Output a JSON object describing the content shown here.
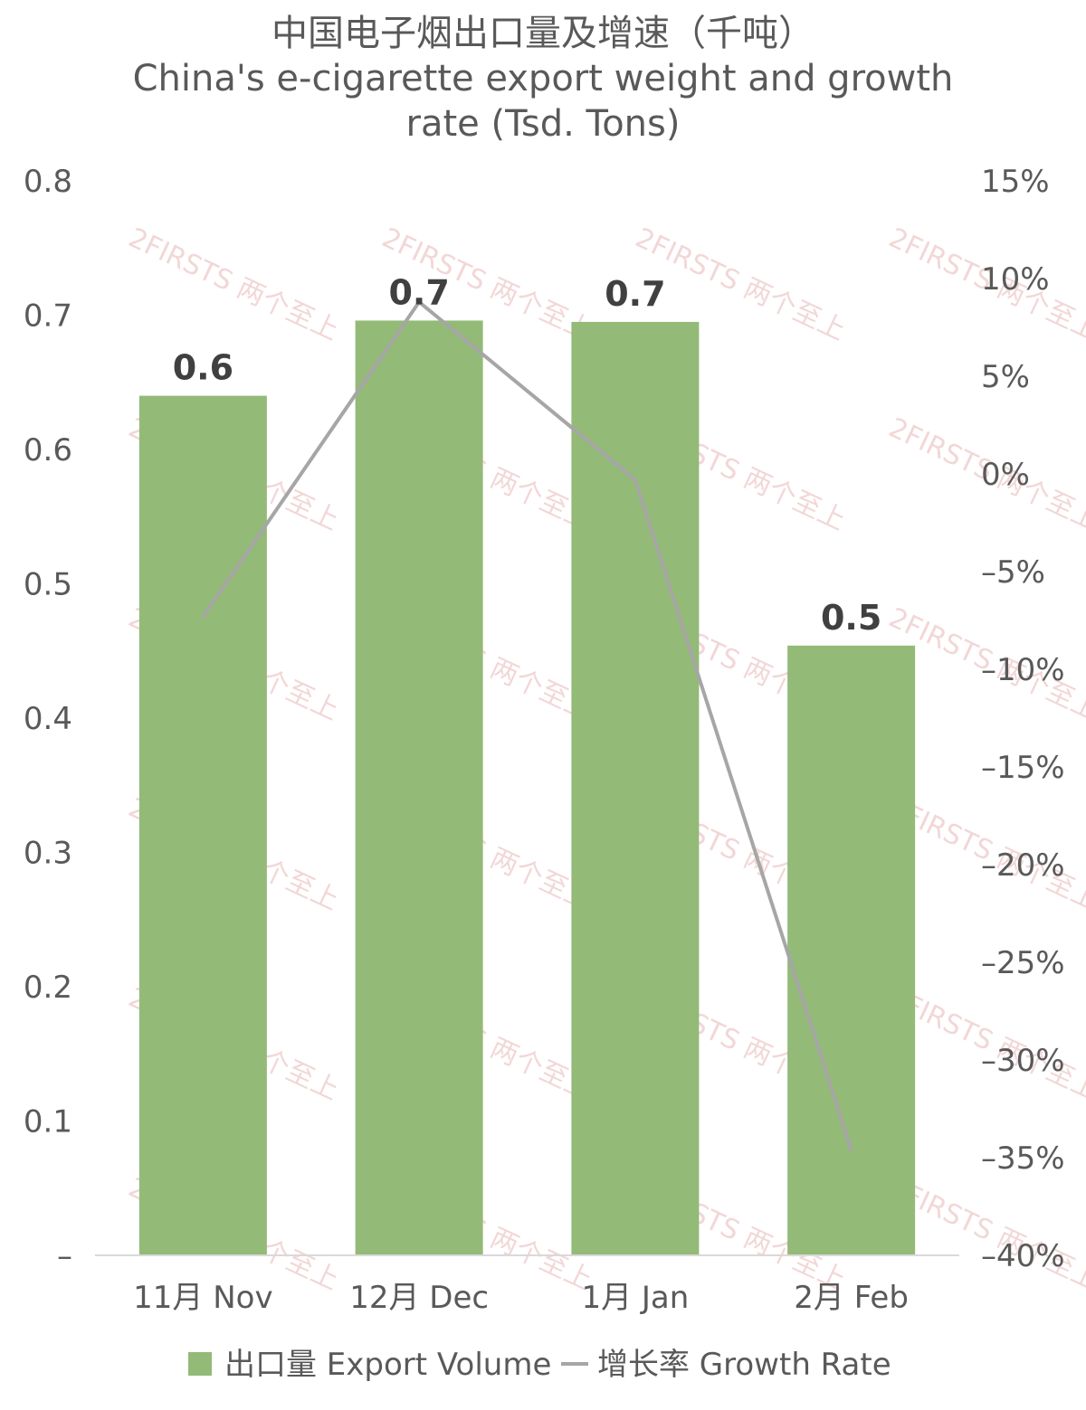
{
  "chart_data": {
    "type": "bar",
    "title": "中国电子烟出口量及增速（千吨）",
    "subtitle_line1": "China's e-cigarette export weight and growth",
    "subtitle_line2": "rate (Tsd. Tons)",
    "categories": [
      "11月 Nov",
      "12月 Dec",
      "1月 Jan",
      "2月 Feb"
    ],
    "series": [
      {
        "name": "出口量 Export Volume",
        "type": "bar",
        "axis": "left",
        "values": [
          0.64,
          0.696,
          0.695,
          0.454
        ],
        "data_labels": [
          "0.6",
          "0.7",
          "0.7",
          "0.5"
        ],
        "color": "#93ba77"
      },
      {
        "name": "增长率 Growth Rate",
        "type": "line",
        "axis": "right",
        "values": [
          -7.3,
          8.8,
          -0.3,
          -34.6
        ],
        "color": "#a6a6a6"
      }
    ],
    "y_left": {
      "ylim": [
        0,
        0.8
      ],
      "tick_labels": [
        "–",
        "0.1",
        "0.2",
        "0.3",
        "0.4",
        "0.5",
        "0.6",
        "0.7",
        "0.8"
      ]
    },
    "y_right": {
      "ylim": [
        -40,
        15
      ],
      "tick_labels": [
        "–40%",
        "–35%",
        "–30%",
        "–25%",
        "–20%",
        "–15%",
        "–10%",
        "–5%",
        "0%",
        "5%",
        "10%",
        "15%"
      ]
    },
    "grid": false,
    "legend_position": "bottom",
    "watermark": "2FIRSTS 两个至上"
  }
}
